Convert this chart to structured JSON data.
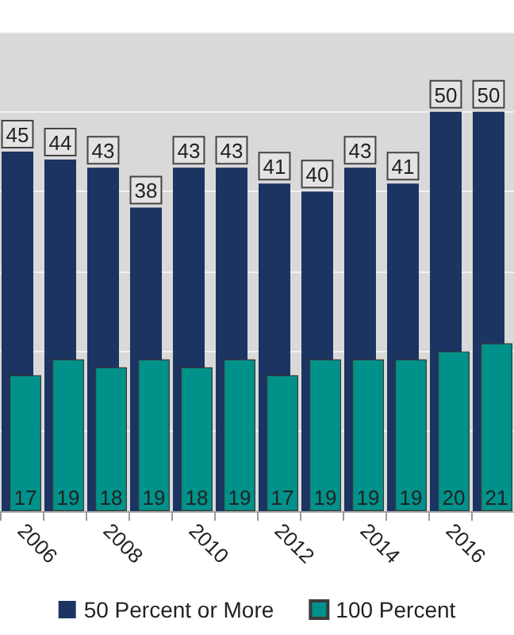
{
  "chart_data": {
    "type": "bar",
    "categories": [
      "2006",
      null,
      "2008",
      null,
      "2010",
      null,
      "2012",
      null,
      "2014",
      null,
      "2016",
      null
    ],
    "series": [
      {
        "name": "50 Percent or More",
        "color": "#1b3461",
        "values": [
          45,
          44,
          43,
          38,
          43,
          43,
          41,
          40,
          43,
          41,
          50,
          50
        ]
      },
      {
        "name": "100 Percent",
        "color": "#00918a",
        "values": [
          17,
          19,
          18,
          19,
          18,
          19,
          17,
          19,
          19,
          19,
          20,
          21
        ]
      }
    ],
    "ylim": [
      0,
      60
    ],
    "yticks": [
      0,
      10,
      20,
      30,
      40,
      50,
      60
    ],
    "tick_labels": "x",
    "grid": "y",
    "legend": "bottom",
    "data_labels": true
  }
}
